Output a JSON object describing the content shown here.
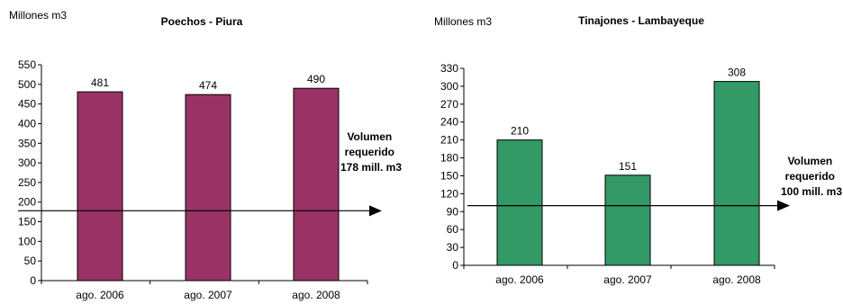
{
  "colors": {
    "chart1_bar": "#993366",
    "chart2_bar": "#339966",
    "axis": "#000000"
  },
  "chart_data": [
    {
      "type": "bar",
      "title": "Poechos - Piura",
      "ylabel": "Millones m3",
      "categories": [
        "ago. 2006",
        "ago. 2007",
        "ago. 2008"
      ],
      "values": [
        481,
        474,
        490
      ],
      "ylim": [
        0,
        550
      ],
      "yticks": [
        0,
        50,
        100,
        150,
        200,
        250,
        300,
        350,
        400,
        450,
        500,
        550
      ],
      "reference_line": {
        "value": 178,
        "label_lines": [
          "Volumen",
          "requerido",
          "178 mill. m3"
        ]
      },
      "grid": false,
      "legend": "none"
    },
    {
      "type": "bar",
      "title": "Tinajones - Lambayeque",
      "ylabel": "Millones m3",
      "categories": [
        "ago. 2006",
        "ago. 2007",
        "ago. 2008"
      ],
      "values": [
        210,
        151,
        308
      ],
      "ylim": [
        0,
        330
      ],
      "yticks": [
        0,
        30,
        60,
        90,
        120,
        150,
        180,
        210,
        240,
        270,
        300,
        330
      ],
      "reference_line": {
        "value": 100,
        "label_lines": [
          "Volumen",
          "requerido",
          "100 mill. m3"
        ]
      },
      "grid": false,
      "legend": "none"
    }
  ]
}
